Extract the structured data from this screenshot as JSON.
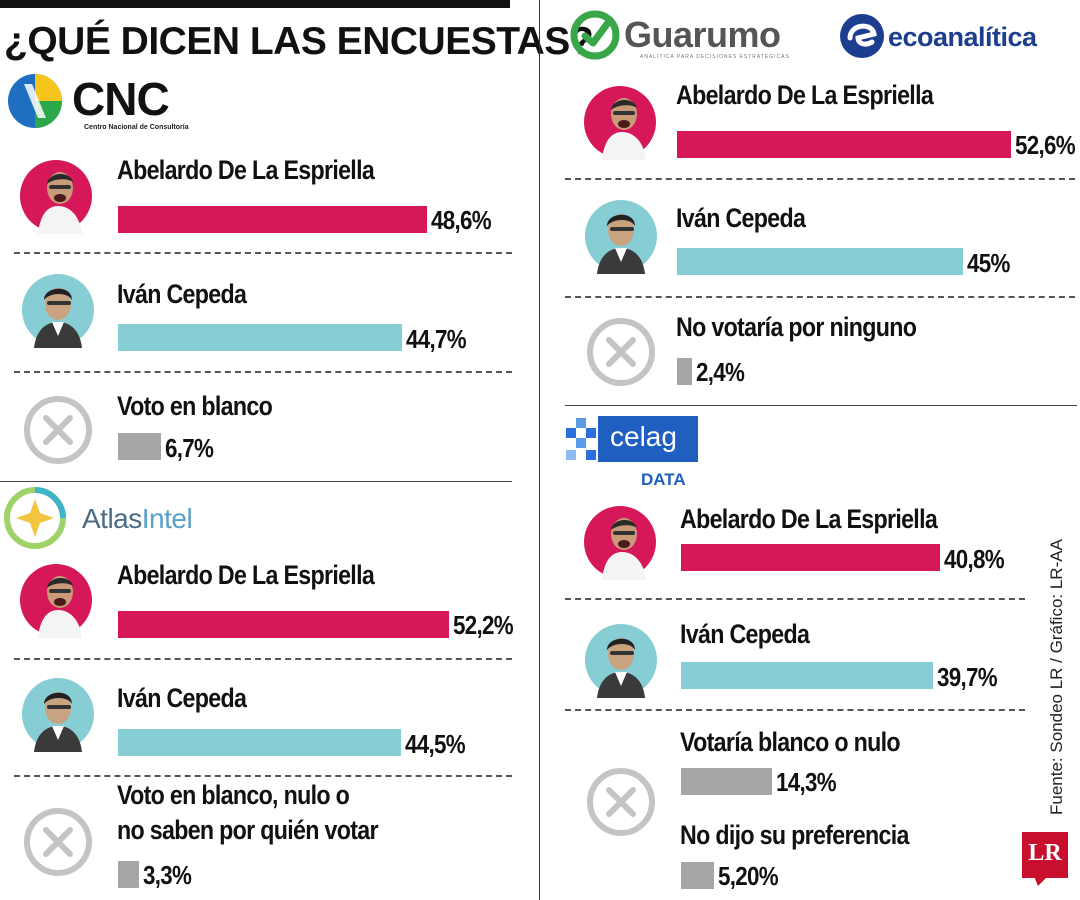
{
  "header": {
    "title": "¿QUÉ DICEN LAS ENCUESTAS?"
  },
  "colors": {
    "candidate_a": "#d6175a",
    "candidate_b": "#86ced3",
    "other": "#a6a6a6",
    "lr_red": "#c8102e"
  },
  "pollsters": {
    "cnc": {
      "name": "CNC",
      "subtitle": "Centro Nacional de Consultoría"
    },
    "atlas": {
      "name_a": "Atlas",
      "name_b": "Intel"
    },
    "guarumo": {
      "name": "Guarumo",
      "subtitle": "ANALÍTICA PARA DECISIONES ESTRATÉGICAS"
    },
    "ecoanalitica": {
      "name": "ecoanalítica"
    },
    "celag": {
      "name": "celag",
      "sub": "DATA"
    }
  },
  "source": "Fuente: Sondeo LR / Gráfico: LR-AA",
  "brand": "LR",
  "chart_data": [
    {
      "type": "bar",
      "pollster": "CNC",
      "categories": [
        "Abelardo De La Espriella",
        "Iván Cepeda",
        "Voto en blanco"
      ],
      "values": [
        48.6,
        44.7,
        6.7
      ],
      "labels": [
        "48,6%",
        "44,7%",
        "6,7%"
      ]
    },
    {
      "type": "bar",
      "pollster": "AtlasIntel",
      "categories": [
        "Abelardo De La Espriella",
        "Iván Cepeda",
        "Voto en blanco, nulo o no saben por quién votar"
      ],
      "values": [
        52.2,
        44.5,
        3.3
      ],
      "labels": [
        "52,2%",
        "44,5%",
        "3,3%"
      ]
    },
    {
      "type": "bar",
      "pollster": "Guarumo / ecoanalítica",
      "categories": [
        "Abelardo De La Espriella",
        "Iván Cepeda",
        "No votaría por ninguno"
      ],
      "values": [
        52.6,
        45,
        2.4
      ],
      "labels": [
        "52,6%",
        "45%",
        "2,4%"
      ]
    },
    {
      "type": "bar",
      "pollster": "Celag Data",
      "categories": [
        "Abelardo De La Espriella",
        "Iván Cepeda",
        "Votaría blanco o nulo",
        "No dijo su preferencia"
      ],
      "values": [
        40.8,
        39.7,
        14.3,
        5.2
      ],
      "labels": [
        "40,8%",
        "39,7%",
        "14,3%",
        "5,20%"
      ]
    }
  ],
  "text": {
    "cnc": [
      "Abelardo De La Espriella",
      "Iván Cepeda",
      "Voto en blanco"
    ],
    "atlas": [
      "Abelardo De La Espriella",
      "Iván Cepeda",
      "Voto en blanco, nulo o",
      "no saben por quién votar"
    ],
    "guarumo": [
      "Abelardo De La Espriella",
      "Iván Cepeda",
      "No votaría por ninguno"
    ],
    "celag": [
      "Abelardo De La Espriella",
      "Iván Cepeda",
      "Votaría blanco o nulo",
      "No dijo su preferencia"
    ]
  }
}
